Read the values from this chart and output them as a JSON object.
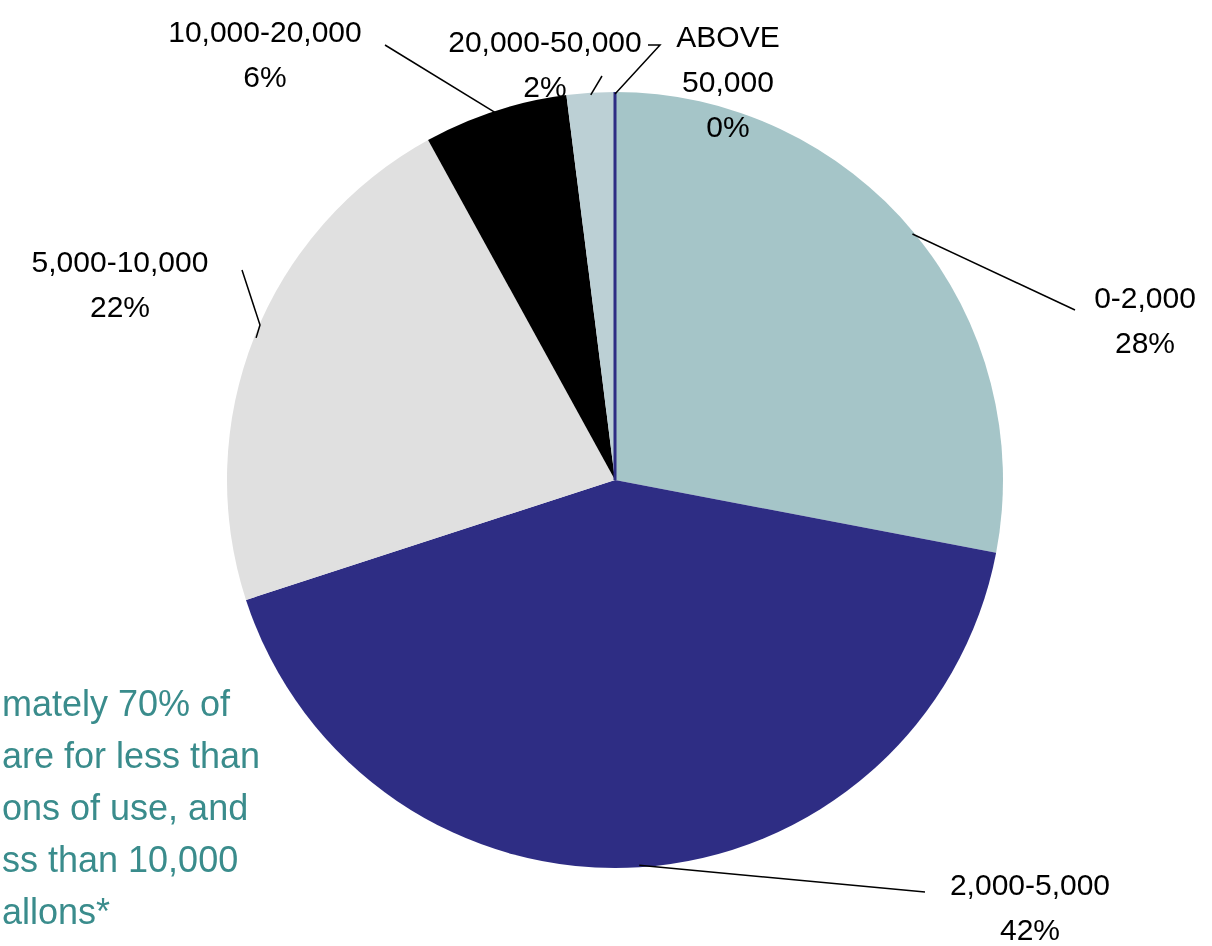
{
  "chart_data": {
    "type": "pie",
    "categories": [
      "0-2,000",
      "2,000-5,000",
      "5,000-10,000",
      "10,000-20,000",
      "20,000-50,000",
      "ABOVE 50,000"
    ],
    "values": [
      28,
      42,
      22,
      6,
      2,
      0
    ],
    "value_labels": [
      "28%",
      "42%",
      "22%",
      "6%",
      "2%",
      "0%"
    ],
    "colors": [
      "#a5c5c8",
      "#2e2d84",
      "#e0e0e0",
      "#000000",
      "#bcd0d5",
      "#2e2d84"
    ],
    "annotations": [
      "mately 70% of\nare for less than\nons of use, and\nss than 10,000\nallons*"
    ]
  }
}
